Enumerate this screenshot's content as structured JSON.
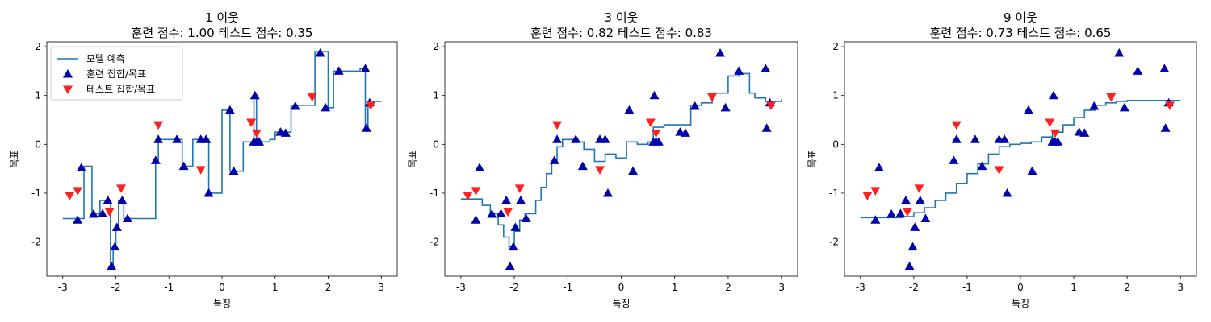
{
  "chart_data": [
    {
      "type": "line+scatter",
      "title_line1": "1 이웃",
      "title_line2": "훈련 점수: 1.00 테스트 점수: 0.35",
      "xlabel": "특징",
      "ylabel": "목표",
      "xlim": [
        -3.3,
        3.3
      ],
      "ylim": [
        -2.7,
        2.1
      ],
      "xticks": [
        -3,
        -2,
        -1,
        0,
        1,
        2,
        3
      ],
      "yticks": [
        -2,
        -1,
        0,
        1,
        2
      ],
      "prediction": {
        "name": "모델 예측",
        "color": "#1f77b4",
        "x": [
          -3.0,
          -2.7,
          -2.6,
          -2.45,
          -2.3,
          -2.15,
          -2.1,
          -2.05,
          -2.0,
          -1.95,
          -1.85,
          -1.8,
          -1.55,
          -1.25,
          -1.2,
          -0.9,
          -0.75,
          -0.55,
          -0.35,
          -0.25,
          -0.15,
          0.0,
          0.15,
          0.4,
          0.55,
          0.6,
          0.65,
          0.7,
          0.9,
          1.0,
          1.2,
          1.3,
          1.4,
          1.6,
          1.75,
          1.9,
          2.0,
          2.1,
          2.3,
          2.6,
          2.7,
          2.75,
          2.85,
          3.0
        ],
        "y": [
          -1.52,
          -1.52,
          -0.45,
          -1.42,
          -1.15,
          -1.15,
          -2.5,
          -2.1,
          -1.7,
          -1.15,
          -1.52,
          -1.52,
          -1.52,
          -0.32,
          0.1,
          0.1,
          -0.45,
          0.1,
          0.1,
          -1.0,
          -1.0,
          0.7,
          -0.55,
          0.05,
          0.05,
          1.0,
          0.05,
          0.05,
          0.1,
          0.25,
          0.25,
          0.8,
          0.8,
          0.8,
          1.9,
          1.9,
          0.75,
          1.5,
          1.5,
          1.55,
          0.35,
          0.85,
          0.88,
          0.88
        ]
      },
      "train": {
        "name": "훈련 집합/목표",
        "color": "#0000aa",
        "x": [
          -2.72,
          -2.65,
          -2.42,
          -2.25,
          -2.15,
          -2.08,
          -2.02,
          -1.98,
          -1.88,
          -1.78,
          -1.25,
          -1.2,
          -0.85,
          -0.72,
          -0.4,
          -0.3,
          -0.25,
          0.15,
          0.22,
          0.6,
          0.62,
          0.65,
          0.7,
          1.1,
          1.2,
          1.38,
          1.85,
          1.95,
          2.2,
          2.7,
          2.72,
          2.78
        ],
        "y": [
          -1.55,
          -0.48,
          -1.43,
          -1.42,
          -1.15,
          -2.5,
          -2.1,
          -1.7,
          -1.15,
          -1.52,
          -0.33,
          0.1,
          0.1,
          -0.45,
          0.1,
          0.1,
          -1.0,
          0.7,
          -0.55,
          0.05,
          1.0,
          0.05,
          0.05,
          0.25,
          0.23,
          0.78,
          1.87,
          0.75,
          1.5,
          1.55,
          0.33,
          0.85
        ]
      },
      "test": {
        "name": "테스트 집합/목표",
        "color": "#ff2020",
        "x": [
          -2.87,
          -2.72,
          -2.12,
          -1.9,
          -1.2,
          -0.4,
          0.55,
          0.65,
          1.7,
          2.8
        ],
        "y": [
          -1.05,
          -0.95,
          -1.38,
          -0.9,
          0.4,
          -0.52,
          0.45,
          0.23,
          0.97,
          0.8
        ]
      },
      "legend": "top-left"
    },
    {
      "type": "line+scatter",
      "title_line1": "3 이웃",
      "title_line2": "훈련 점수: 0.82 테스트 점수: 0.83",
      "xlabel": "특징",
      "ylabel": "목표",
      "xlim": [
        -3.3,
        3.3
      ],
      "ylim": [
        -2.7,
        2.1
      ],
      "xticks": [
        -3,
        -2,
        -1,
        0,
        1,
        2,
        3
      ],
      "yticks": [
        -2,
        -1,
        0,
        1,
        2
      ],
      "prediction": {
        "name": "모델 예측",
        "color": "#1f77b4",
        "x": [
          -3.0,
          -2.7,
          -2.6,
          -2.45,
          -2.3,
          -2.2,
          -2.1,
          -2.0,
          -1.9,
          -1.8,
          -1.6,
          -1.5,
          -1.4,
          -1.3,
          -1.2,
          -1.1,
          -0.9,
          -0.7,
          -0.5,
          -0.3,
          -0.1,
          0.1,
          0.3,
          0.5,
          0.6,
          0.8,
          1.0,
          1.3,
          1.5,
          1.7,
          1.8,
          2.0,
          2.2,
          2.4,
          2.5,
          2.7,
          3.0
        ],
        "y": [
          -1.12,
          -1.12,
          -1.25,
          -1.42,
          -1.65,
          -1.9,
          -2.1,
          -1.78,
          -1.55,
          -1.42,
          -1.15,
          -0.88,
          -0.6,
          -0.35,
          -0.05,
          0.1,
          0.05,
          -0.1,
          -0.35,
          -0.2,
          -0.28,
          0.05,
          0.0,
          0.05,
          0.35,
          0.4,
          0.4,
          0.8,
          0.85,
          1.05,
          1.05,
          1.4,
          1.45,
          1.05,
          0.95,
          0.88,
          0.92
        ]
      },
      "train": {
        "name": "훈련 집합/목표",
        "color": "#0000aa",
        "x": [
          -2.72,
          -2.65,
          -2.42,
          -2.25,
          -2.15,
          -2.08,
          -2.02,
          -1.98,
          -1.88,
          -1.78,
          -1.25,
          -1.2,
          -0.85,
          -0.72,
          -0.4,
          -0.3,
          -0.25,
          0.15,
          0.22,
          0.6,
          0.62,
          0.65,
          0.7,
          1.1,
          1.2,
          1.38,
          1.85,
          1.95,
          2.2,
          2.7,
          2.72,
          2.78
        ],
        "y": [
          -1.55,
          -0.48,
          -1.43,
          -1.42,
          -1.15,
          -2.5,
          -2.1,
          -1.7,
          -1.15,
          -1.52,
          -0.33,
          0.1,
          0.1,
          -0.45,
          0.1,
          0.1,
          -1.0,
          0.7,
          -0.55,
          0.05,
          1.0,
          0.05,
          0.05,
          0.25,
          0.23,
          0.78,
          1.87,
          0.75,
          1.5,
          1.55,
          0.33,
          0.85
        ]
      },
      "test": {
        "name": "테스트 집합/목표",
        "color": "#ff2020",
        "x": [
          -2.87,
          -2.72,
          -2.12,
          -1.9,
          -1.2,
          -0.4,
          0.55,
          0.65,
          1.7,
          2.8
        ],
        "y": [
          -1.05,
          -0.95,
          -1.38,
          -0.9,
          0.4,
          -0.52,
          0.45,
          0.23,
          0.97,
          0.8
        ]
      }
    },
    {
      "type": "line+scatter",
      "title_line1": "9 이웃",
      "title_line2": "훈련 점수: 0.73 테스트 점수: 0.65",
      "xlabel": "특징",
      "ylabel": "목표",
      "xlim": [
        -3.3,
        3.3
      ],
      "ylim": [
        -2.7,
        2.1
      ],
      "xticks": [
        -3,
        -2,
        -1,
        0,
        1,
        2,
        3
      ],
      "yticks": [
        -2,
        -1,
        0,
        1,
        2
      ],
      "prediction": {
        "name": "모델 예측",
        "color": "#1f77b4",
        "x": [
          -3.0,
          -2.4,
          -2.2,
          -2.0,
          -1.8,
          -1.6,
          -1.4,
          -1.2,
          -1.0,
          -0.8,
          -0.6,
          -0.4,
          -0.2,
          0.0,
          0.2,
          0.4,
          0.6,
          0.8,
          1.0,
          1.2,
          1.4,
          1.6,
          1.8,
          2.0,
          3.0
        ],
        "y": [
          -1.5,
          -1.5,
          -1.48,
          -1.4,
          -1.3,
          -1.15,
          -1.0,
          -0.8,
          -0.6,
          -0.4,
          -0.2,
          -0.05,
          0.0,
          0.02,
          0.05,
          0.15,
          0.25,
          0.4,
          0.55,
          0.7,
          0.8,
          0.85,
          0.88,
          0.9,
          0.9
        ]
      },
      "train": {
        "name": "훈련 집합/목표",
        "color": "#0000aa",
        "x": [
          -2.72,
          -2.65,
          -2.42,
          -2.25,
          -2.15,
          -2.08,
          -2.02,
          -1.98,
          -1.88,
          -1.78,
          -1.25,
          -1.2,
          -0.85,
          -0.72,
          -0.4,
          -0.3,
          -0.25,
          0.15,
          0.22,
          0.6,
          0.62,
          0.65,
          0.7,
          1.1,
          1.2,
          1.38,
          1.85,
          1.95,
          2.2,
          2.7,
          2.72,
          2.78
        ],
        "y": [
          -1.55,
          -0.48,
          -1.43,
          -1.42,
          -1.15,
          -2.5,
          -2.1,
          -1.7,
          -1.15,
          -1.52,
          -0.33,
          0.1,
          0.1,
          -0.45,
          0.1,
          0.1,
          -1.0,
          0.7,
          -0.55,
          0.05,
          1.0,
          0.05,
          0.05,
          0.25,
          0.23,
          0.78,
          1.87,
          0.75,
          1.5,
          1.55,
          0.33,
          0.85
        ]
      },
      "test": {
        "name": "테스트 집합/목표",
        "color": "#ff2020",
        "x": [
          -2.87,
          -2.72,
          -2.12,
          -1.9,
          -1.2,
          -0.4,
          0.55,
          0.65,
          1.7,
          2.8
        ],
        "y": [
          -1.05,
          -0.95,
          -1.38,
          -0.9,
          0.4,
          -0.52,
          0.45,
          0.23,
          0.97,
          0.8
        ]
      }
    }
  ]
}
